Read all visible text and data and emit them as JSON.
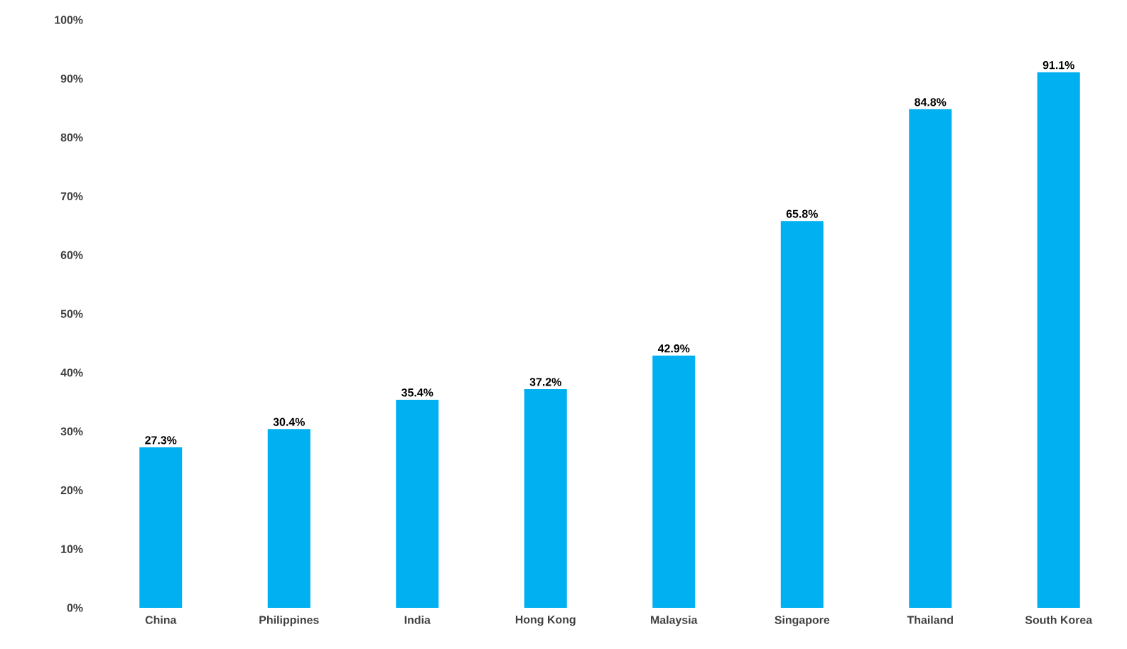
{
  "chart_data": {
    "type": "bar",
    "categories": [
      "China",
      "Philippines",
      "India",
      "Hong Kong",
      "Malaysia",
      "Singapore",
      "Thailand",
      "South Korea"
    ],
    "values": [
      27.3,
      30.4,
      35.4,
      37.2,
      42.9,
      65.8,
      84.8,
      91.1
    ],
    "value_labels": [
      "27.3%",
      "30.4%",
      "35.4%",
      "37.2%",
      "42.9%",
      "65.8%",
      "84.8%",
      "91.1%"
    ],
    "color": "#00b0f0",
    "ylim": [
      0,
      100
    ],
    "yticks": [
      {
        "value": 0,
        "label": "0%"
      },
      {
        "value": 10,
        "label": "10%"
      },
      {
        "value": 20,
        "label": "20%"
      },
      {
        "value": 30,
        "label": "30%"
      },
      {
        "value": 40,
        "label": "40%"
      },
      {
        "value": 50,
        "label": "50%"
      },
      {
        "value": 60,
        "label": "60%"
      },
      {
        "value": 70,
        "label": "70%"
      },
      {
        "value": 80,
        "label": "80%"
      },
      {
        "value": 90,
        "label": "90%"
      },
      {
        "value": 100,
        "label": "100%"
      }
    ],
    "grid": false
  }
}
